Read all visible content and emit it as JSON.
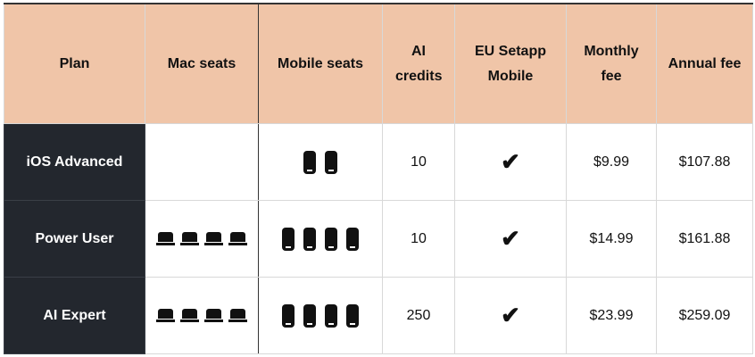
{
  "headers": [
    "Plan",
    "Mac seats",
    "Mobile seats",
    "AI credits",
    "EU Setapp Mobile",
    "Monthly fee",
    "Annual fee"
  ],
  "rows": [
    {
      "plan": "iOS Advanced",
      "mac_seats": 0,
      "mobile_seats": 2,
      "ai_credits": "10",
      "eu_setapp_mobile": true,
      "monthly": "$9.99",
      "annual": "$107.88"
    },
    {
      "plan": "Power User",
      "mac_seats": 4,
      "mobile_seats": 4,
      "ai_credits": "10",
      "eu_setapp_mobile": true,
      "monthly": "$14.99",
      "annual": "$161.88"
    },
    {
      "plan": "AI Expert",
      "mac_seats": 4,
      "mobile_seats": 4,
      "ai_credits": "250",
      "eu_setapp_mobile": true,
      "monthly": "$23.99",
      "annual": "$259.09"
    }
  ],
  "check_glyph": "✔",
  "colors": {
    "header_bg": "#f0c5a8",
    "plan_bg": "#23272e"
  }
}
